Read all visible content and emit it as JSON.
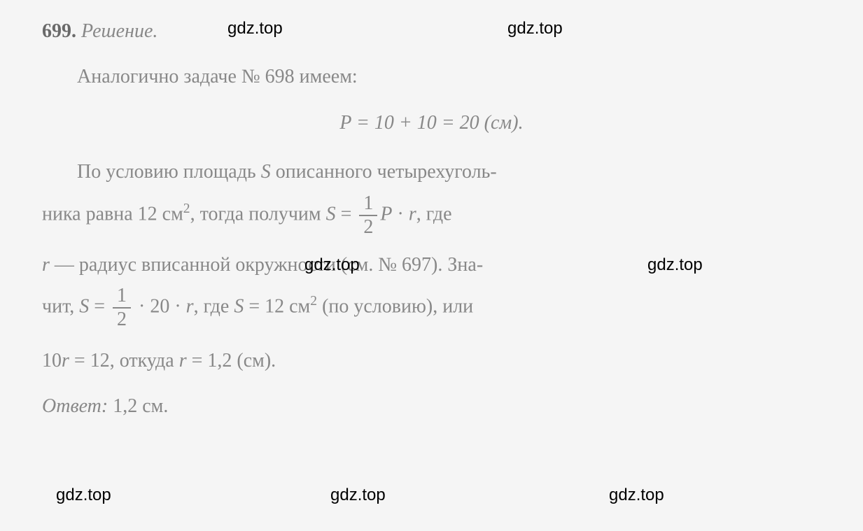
{
  "text_color": "#888888",
  "background_color": "#f5f5f5",
  "watermark_color": "#000000",
  "font_family": "Georgia, Times New Roman, serif",
  "problem": {
    "number": "699.",
    "solution_label": "Решение."
  },
  "line2": "Аналогично задаче № 698 имеем:",
  "equation1": {
    "text": "P = 10 + 10 = 20 (см)."
  },
  "line3": "По условию площадь S описанного четырехуголь-",
  "line4": {
    "part1": "ника равна 12 см",
    "sup1": "2",
    "part2": ", тогда получим ",
    "var_s": "S",
    "equals": " = ",
    "frac_num": "1",
    "frac_den": "2",
    "var_p": "P",
    "dot": " · ",
    "var_r": "r",
    "part3": ", где"
  },
  "line5": {
    "var_r": "r",
    "text": " — радиус вписанной окружности (см. № 697). Зна-"
  },
  "line6": {
    "part1": "чит, ",
    "var_s": "S",
    "equals": " = ",
    "frac_num": "1",
    "frac_den": "2",
    "mult": " · 20 · ",
    "var_r": "r",
    "part2": ", где ",
    "var_s2": "S",
    "eq2": " = 12 см",
    "sup": "2",
    "part3": " (по условию), или"
  },
  "line7": {
    "part1": "10",
    "var_r": "r",
    "part2": " = 12, откуда ",
    "var_r2": "r",
    "part3": " = 1,2 (см)."
  },
  "line8": {
    "answer_label": "Ответ:",
    "answer_value": " 1,2 см."
  },
  "watermarks": {
    "text": "gdz.top"
  }
}
